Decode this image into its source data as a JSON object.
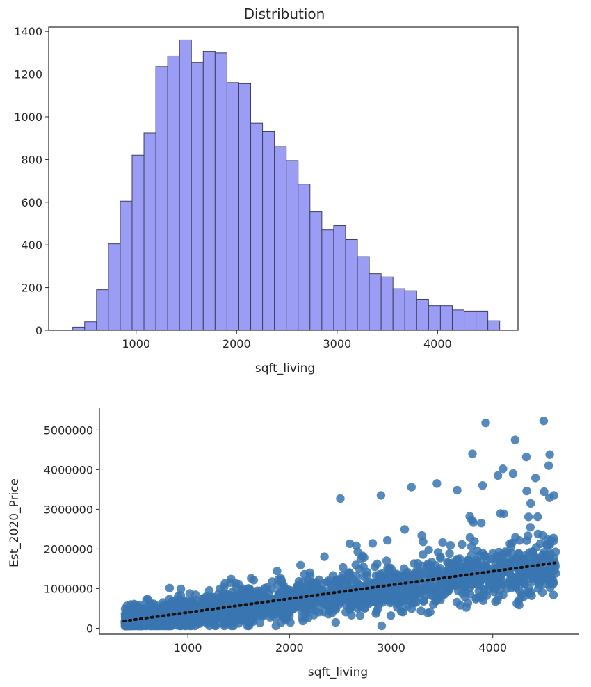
{
  "chart_data": [
    {
      "type": "bar",
      "title": "Distribution",
      "xlabel": "sqft_living",
      "ylabel": "",
      "xlim": [
        130,
        4800
      ],
      "ylim": [
        0,
        1420
      ],
      "xticks": [
        1000,
        2000,
        3000,
        4000
      ],
      "yticks": [
        0,
        200,
        400,
        600,
        800,
        1000,
        1200,
        1400
      ],
      "bin_edges": [
        370,
        488,
        606,
        724,
        842,
        960,
        1078,
        1196,
        1314,
        1432,
        1550,
        1668,
        1786,
        1904,
        2022,
        2140,
        2258,
        2376,
        2494,
        2612,
        2730,
        2848,
        2966,
        3084,
        3202,
        3320,
        3438,
        3556,
        3674,
        3792,
        3910,
        4028,
        4146,
        4264,
        4382,
        4500,
        4618
      ],
      "values": [
        15,
        40,
        190,
        405,
        605,
        820,
        925,
        1235,
        1285,
        1360,
        1255,
        1305,
        1300,
        1160,
        1155,
        970,
        930,
        860,
        795,
        685,
        555,
        470,
        490,
        425,
        345,
        265,
        250,
        195,
        185,
        145,
        115,
        115,
        95,
        90,
        90,
        45
      ],
      "colors": {
        "bar_fill": "#9b9cf3",
        "bar_edge": "#3e3e62"
      },
      "grid": false
    },
    {
      "type": "scatter",
      "title": "",
      "xlabel": "sqft_living",
      "ylabel": "Est_2020_Price",
      "xlim": [
        130,
        4850
      ],
      "ylim": [
        -150000,
        5550000
      ],
      "xticks": [
        1000,
        2000,
        3000,
        4000
      ],
      "yticks": [
        0,
        1000000,
        2000000,
        3000000,
        4000000,
        5000000
      ],
      "point_count_note": "dense cloud, points reproduced by sampling from trend",
      "trendline": {
        "x": [
          370,
          4620
        ],
        "y": [
          180000,
          1650000
        ],
        "style": "dotted",
        "color": "#111111"
      },
      "outliers": [
        {
          "x": 3930,
          "y": 5180000
        },
        {
          "x": 4500,
          "y": 5230000
        },
        {
          "x": 4220,
          "y": 4750000
        },
        {
          "x": 3800,
          "y": 4400000
        },
        {
          "x": 4100,
          "y": 4020000
        },
        {
          "x": 4560,
          "y": 4380000
        },
        {
          "x": 4200,
          "y": 3900000
        },
        {
          "x": 4420,
          "y": 3790000
        },
        {
          "x": 2500,
          "y": 3270000
        },
        {
          "x": 2900,
          "y": 3350000
        },
        {
          "x": 3200,
          "y": 3560000
        },
        {
          "x": 3450,
          "y": 3650000
        },
        {
          "x": 3650,
          "y": 3480000
        },
        {
          "x": 3900,
          "y": 3600000
        },
        {
          "x": 4550,
          "y": 4100000
        },
        {
          "x": 4600,
          "y": 3350000
        },
        {
          "x": 4330,
          "y": 4320000
        },
        {
          "x": 4050,
          "y": 3850000
        }
      ],
      "colors": {
        "point": "#3a76b0"
      },
      "grid": false
    }
  ]
}
